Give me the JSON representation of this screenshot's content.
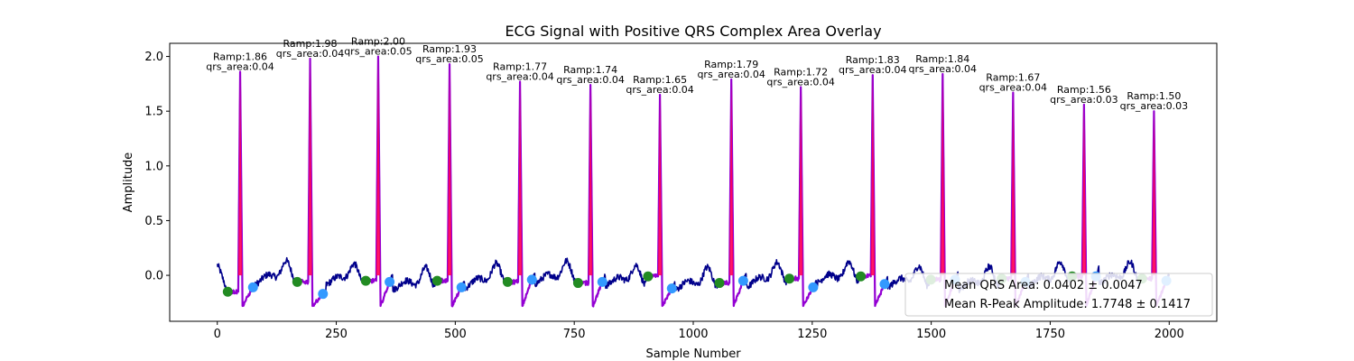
{
  "chart_data": {
    "type": "line",
    "title": "ECG Signal with Positive QRS Complex Area Overlay",
    "xlabel": "Sample Number",
    "ylabel": "Amplitude",
    "xlim": [
      -100,
      2100
    ],
    "ylim": [
      -0.42,
      2.12
    ],
    "xticks": [
      0,
      250,
      500,
      750,
      1000,
      1250,
      1500,
      1750,
      2000
    ],
    "yticks": [
      0.0,
      0.5,
      1.0,
      1.5,
      2.0
    ],
    "ytick_labels": [
      "0.0",
      "0.5",
      "1.0",
      "1.5",
      "2.0"
    ],
    "grid": false,
    "legend_position": "lower-right",
    "legend": [
      "Mean QRS Area: 0.0402 ± 0.0047",
      "Mean R-Peak Amplitude: 1.7748 ± 0.1417"
    ],
    "colors": {
      "signal": "#00008b",
      "qrs_segment": "#9400d3",
      "qrs_area": "#ff0055",
      "q_points": "#228b22",
      "s_points": "#3399ff"
    },
    "beats": [
      {
        "r_x": 48,
        "r_amp": 1.86,
        "q_x": 22,
        "q_y": -0.15,
        "s_x": 75,
        "s_y": -0.11,
        "label": "Ramp:1.86",
        "area_label": "qrs_area:0.04"
      },
      {
        "r_x": 195,
        "r_amp": 1.98,
        "q_x": 168,
        "q_y": -0.06,
        "s_x": 222,
        "s_y": -0.17,
        "label": "Ramp:1.98",
        "area_label": "qrs_area:0.04"
      },
      {
        "r_x": 338,
        "r_amp": 2.0,
        "q_x": 312,
        "q_y": -0.05,
        "s_x": 362,
        "s_y": -0.06,
        "label": "Ramp:2.00",
        "area_label": "qrs_area:0.05"
      },
      {
        "r_x": 488,
        "r_amp": 1.93,
        "q_x": 462,
        "q_y": -0.05,
        "s_x": 513,
        "s_y": -0.11,
        "label": "Ramp:1.93",
        "area_label": "qrs_area:0.05"
      },
      {
        "r_x": 636,
        "r_amp": 1.77,
        "q_x": 610,
        "q_y": -0.06,
        "s_x": 661,
        "s_y": -0.04,
        "label": "Ramp:1.77",
        "area_label": "qrs_area:0.04"
      },
      {
        "r_x": 784,
        "r_amp": 1.74,
        "q_x": 758,
        "q_y": -0.07,
        "s_x": 809,
        "s_y": -0.06,
        "label": "Ramp:1.74",
        "area_label": "qrs_area:0.04"
      },
      {
        "r_x": 930,
        "r_amp": 1.65,
        "q_x": 905,
        "q_y": -0.01,
        "s_x": 955,
        "s_y": -0.12,
        "label": "Ramp:1.65",
        "area_label": "qrs_area:0.04"
      },
      {
        "r_x": 1080,
        "r_amp": 1.79,
        "q_x": 1055,
        "q_y": -0.07,
        "s_x": 1105,
        "s_y": -0.05,
        "label": "Ramp:1.79",
        "area_label": "qrs_area:0.04"
      },
      {
        "r_x": 1226,
        "r_amp": 1.72,
        "q_x": 1202,
        "q_y": -0.03,
        "s_x": 1252,
        "s_y": -0.11,
        "label": "Ramp:1.72",
        "area_label": "qrs_area:0.04"
      },
      {
        "r_x": 1377,
        "r_amp": 1.83,
        "q_x": 1352,
        "q_y": -0.01,
        "s_x": 1402,
        "s_y": -0.08,
        "label": "Ramp:1.83",
        "area_label": "qrs_area:0.04"
      },
      {
        "r_x": 1524,
        "r_amp": 1.84,
        "q_x": 1499,
        "q_y": -0.04,
        "s_x": 1550,
        "s_y": -0.04,
        "label": "Ramp:1.84",
        "area_label": "qrs_area:0.04"
      },
      {
        "r_x": 1672,
        "r_amp": 1.67,
        "q_x": 1648,
        "q_y": -0.03,
        "s_x": 1698,
        "s_y": -0.06,
        "label": "Ramp:1.67",
        "area_label": "qrs_area:0.04"
      },
      {
        "r_x": 1821,
        "r_amp": 1.56,
        "q_x": 1796,
        "q_y": -0.01,
        "s_x": 1846,
        "s_y": -0.01,
        "label": "Ramp:1.56",
        "area_label": "qrs_area:0.03"
      },
      {
        "r_x": 1968,
        "r_amp": 1.5,
        "q_x": 1943,
        "q_y": -0.03,
        "s_x": 1994,
        "s_y": -0.05,
        "label": "Ramp:1.50",
        "area_label": "qrs_area:0.03"
      }
    ]
  }
}
